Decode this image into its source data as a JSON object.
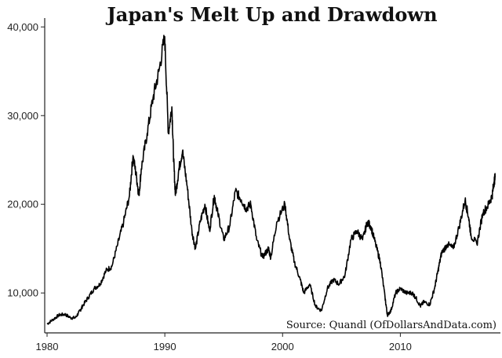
{
  "chart_data": {
    "type": "line",
    "title": "Japan's Melt Up and Drawdown",
    "xlabel": "",
    "ylabel": "",
    "xlim": [
      1979.8,
      2018.5
    ],
    "ylim": [
      5500,
      41000
    ],
    "xticks": [
      1980,
      1990,
      2000,
      2010
    ],
    "xtick_labels": [
      "1980",
      "1990",
      "2000",
      "2010"
    ],
    "yticks": [
      10000,
      20000,
      30000,
      40000
    ],
    "ytick_labels": [
      "10,000",
      "20,000",
      "30,000",
      "40,000"
    ],
    "grid": false,
    "annotation": "Source:  Quandl (OfDollarsAndData.com)",
    "series": [
      {
        "color": "#000000",
        "x": [
          1980.0,
          1980.5,
          1981.0,
          1981.5,
          1982.0,
          1982.4,
          1982.8,
          1983.0,
          1983.5,
          1984.0,
          1984.5,
          1985.0,
          1985.5,
          1986.0,
          1986.5,
          1987.0,
          1987.3,
          1987.6,
          1987.8,
          1988.0,
          1988.5,
          1989.0,
          1989.5,
          1989.99,
          1990.3,
          1990.6,
          1990.75,
          1990.9,
          1991.2,
          1991.5,
          1991.9,
          1992.3,
          1992.6,
          1993.0,
          1993.4,
          1993.8,
          1994.2,
          1994.5,
          1995.0,
          1995.5,
          1996.0,
          1996.5,
          1996.9,
          1997.3,
          1997.8,
          1998.3,
          1998.8,
          1999.0,
          1999.5,
          2000.2,
          2000.6,
          2001.0,
          2001.5,
          2001.8,
          2002.3,
          2002.8,
          2003.3,
          2003.8,
          2004.3,
          2004.8,
          2005.3,
          2005.8,
          2006.3,
          2006.8,
          2007.2,
          2007.5,
          2007.9,
          2008.3,
          2008.7,
          2008.9,
          2009.2,
          2009.6,
          2010.0,
          2010.5,
          2011.0,
          2011.3,
          2011.7,
          2012.0,
          2012.5,
          2012.9,
          2013.2,
          2013.5,
          2014.0,
          2014.5,
          2015.0,
          2015.5,
          2015.8,
          2016.0,
          2016.5,
          2017.0,
          2017.5,
          2017.8,
          2017.95,
          2018.05
        ],
        "y": [
          6500,
          7000,
          7500,
          7600,
          7200,
          7200,
          8000,
          8500,
          9500,
          10500,
          11000,
          12500,
          13000,
          15500,
          18000,
          21000,
          25500,
          23000,
          21000,
          24000,
          28000,
          32000,
          35000,
          38900,
          28000,
          31000,
          25000,
          21000,
          24000,
          26000,
          22000,
          17000,
          15000,
          18000,
          20000,
          17000,
          21000,
          19000,
          16000,
          17500,
          21500,
          20500,
          19500,
          20000,
          16000,
          14000,
          15000,
          14000,
          18000,
          20000,
          16000,
          13500,
          11500,
          10000,
          11000,
          8500,
          8000,
          10500,
          11500,
          11000,
          12000,
          16000,
          17000,
          16000,
          18000,
          17500,
          15500,
          13500,
          9500,
          7500,
          8000,
          10000,
          10500,
          10000,
          10000,
          9500,
          8500,
          9000,
          8700,
          10500,
          12500,
          14500,
          15500,
          15000,
          17500,
          20500,
          18500,
          16500,
          15500,
          19000,
          20000,
          21000,
          22500,
          23000
        ]
      }
    ]
  }
}
